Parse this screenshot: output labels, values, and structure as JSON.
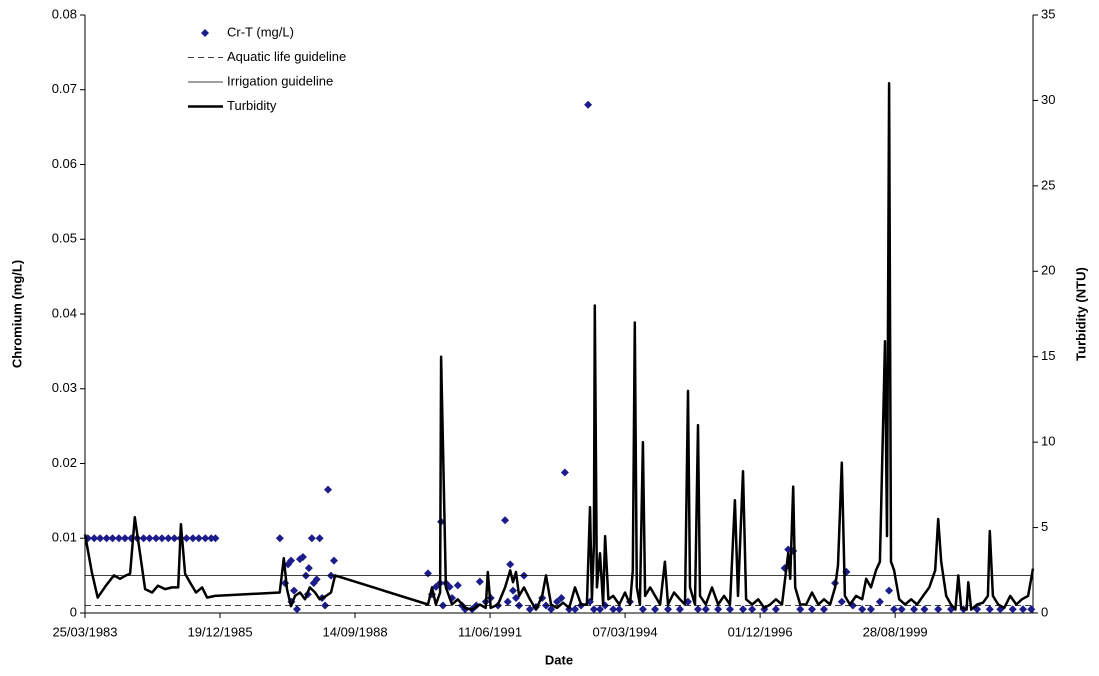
{
  "chart_data": {
    "type": "combo",
    "xlabel": "Date",
    "ylabel": "Chromium (mg/L)",
    "y2label": "Turbidity (NTU)",
    "xlim": [
      "1983-03-25",
      "2002-06-14"
    ],
    "xticks": [
      {
        "value": "1983-03-25",
        "label": "25/03/1983"
      },
      {
        "value": "1985-12-19",
        "label": "19/12/1985"
      },
      {
        "value": "1988-09-14",
        "label": "14/09/1988"
      },
      {
        "value": "1991-06-11",
        "label": "11/06/1991"
      },
      {
        "value": "1994-03-07",
        "label": "07/03/1994"
      },
      {
        "value": "1996-12-01",
        "label": "01/12/1996"
      },
      {
        "value": "1999-08-28",
        "label": "28/08/1999"
      }
    ],
    "ylim": [
      0,
      0.08
    ],
    "yticks": [
      0,
      0.01,
      0.02,
      0.03,
      0.04,
      0.05,
      0.06,
      0.07,
      0.08
    ],
    "y2lim": [
      0,
      35
    ],
    "y2ticks": [
      0,
      5,
      10,
      15,
      20,
      25,
      30,
      35
    ],
    "grid": false,
    "legend": "upper left",
    "series": [
      {
        "name": "Cr-T (mg/L)",
        "type": "scatter",
        "color": "#1c1c8a",
        "x": [
          "1983-04-15",
          "1983-06-01",
          "1983-07-15",
          "1983-09-01",
          "1983-10-15",
          "1983-12-01",
          "1984-01-15",
          "1984-03-01",
          "1984-04-15",
          "1984-06-01",
          "1984-07-15",
          "1984-09-01",
          "1984-10-15",
          "1984-12-01",
          "1985-01-15",
          "1985-03-01",
          "1985-04-15",
          "1985-06-01",
          "1985-07-15",
          "1985-09-01",
          "1985-10-15",
          "1985-11-15",
          "1987-03-07",
          "1987-04-15",
          "1987-05-07",
          "1987-05-29",
          "1987-06-01",
          "1987-06-20",
          "1987-07-12",
          "1987-08-03",
          "1987-08-25",
          "1987-09-16",
          "1987-09-30",
          "1987-10-08",
          "1987-10-30",
          "1987-11-13",
          "1987-12-05",
          "1987-12-27",
          "1988-01-14",
          "1988-02-05",
          "1988-02-27",
          "1988-03-20",
          "1988-04-11",
          "1990-03-08",
          "1990-04-07",
          "1990-05-06",
          "1990-06-06",
          "1990-06-13",
          "1990-06-27",
          "1990-07-19",
          "1990-08-15",
          "1990-09-02",
          "1990-10-15",
          "1990-11-15",
          "1990-12-08",
          "1991-01-29",
          "1991-03-01",
          "1991-03-27",
          "1991-05-10",
          "1991-06-16",
          "1991-08-09",
          "1991-09-30",
          "1991-10-20",
          "1991-11-07",
          "1991-11-28",
          "1991-12-20",
          "1992-01-12",
          "1992-02-17",
          "1992-04-01",
          "1992-05-16",
          "1992-07-01",
          "1992-07-29",
          "1992-09-05",
          "1992-10-19",
          "1992-11-20",
          "1992-12-16",
          "1993-01-17",
          "1993-03-01",
          "1993-04-15",
          "1993-06-06",
          "1993-06-20",
          "1993-07-19",
          "1993-09-02",
          "1993-10-10",
          "1993-12-09",
          "1994-01-23",
          "1994-04-12",
          "1994-07-17",
          "1994-10-15",
          "1995-01-19",
          "1995-04-17",
          "1995-06-16",
          "1995-08-29",
          "1995-10-26",
          "1996-01-25",
          "1996-04-22",
          "1996-07-27",
          "1996-10-03",
          "1997-01-01",
          "1997-03-28",
          "1997-06-01",
          "1997-06-27",
          "1997-08-03",
          "1997-09-24",
          "1997-12-20",
          "1998-03-19",
          "1998-06-09",
          "1998-07-29",
          "1998-09-01",
          "1998-10-19",
          "1998-12-27",
          "1999-03-02",
          "1999-05-07",
          "1999-07-14",
          "1999-08-20",
          "1999-10-15",
          "2000-01-15",
          "2000-04-01",
          "2000-07-12",
          "2000-10-15",
          "2001-01-15",
          "2001-04-26",
          "2001-07-29",
          "2001-10-15",
          "2002-01-15",
          "2002-04-01",
          "2002-06-01"
        ],
        "values": [
          0.01,
          0.01,
          0.01,
          0.01,
          0.01,
          0.01,
          0.01,
          0.01,
          0.01,
          0.01,
          0.01,
          0.01,
          0.01,
          0.01,
          0.01,
          0.01,
          0.01,
          0.01,
          0.01,
          0.01,
          0.01,
          0.01,
          0.01,
          0.004,
          0.0065,
          0.007,
          0.0015,
          0.003,
          0.0005,
          0.0072,
          0.0075,
          0.005,
          0.0025,
          0.006,
          0.01,
          0.004,
          0.0045,
          0.01,
          0.002,
          0.001,
          0.0165,
          0.005,
          0.007,
          0.0053,
          0.0025,
          0.0035,
          0.004,
          0.0122,
          0.001,
          0.004,
          0.0035,
          0.002,
          0.0037,
          0.001,
          0.0005,
          0.0005,
          0.001,
          0.0042,
          0.0015,
          0.002,
          0.001,
          0.0124,
          0.0015,
          0.0065,
          0.003,
          0.002,
          0.001,
          0.005,
          0.0005,
          0.0008,
          0.002,
          0.001,
          0.0005,
          0.0015,
          0.002,
          0.0188,
          0.0005,
          0.0005,
          0.001,
          0.068,
          0.0015,
          0.0005,
          0.0005,
          0.001,
          0.0005,
          0.0005,
          0.0015,
          0.0005,
          0.0005,
          0.0005,
          0.0005,
          0.0015,
          0.0005,
          0.0005,
          0.0005,
          0.0005,
          0.0005,
          0.0005,
          0.0005,
          0.0005,
          0.006,
          0.0085,
          0.0083,
          0.0005,
          0.0005,
          0.0005,
          0.004,
          0.0015,
          0.0055,
          0.001,
          0.0005,
          0.0005,
          0.0015,
          0.003,
          0.0005,
          0.0005,
          0.0005,
          0.0005,
          0.0005,
          0.0005,
          0.0005,
          0.0005,
          0.0005,
          0.0005,
          0.0005,
          0.0005,
          0.0005
        ]
      },
      {
        "name": "Aquatic life guideline",
        "type": "hline",
        "style": "dashed",
        "color": "#000000",
        "value": 0.001
      },
      {
        "name": "Irrigation guideline",
        "type": "hline",
        "style": "thin",
        "color": "#000000",
        "value": 0.005
      },
      {
        "name": "Turbidity",
        "type": "line",
        "axis": "y2",
        "color": "#000000",
        "x": [
          "1983-03-25",
          "1983-05-14",
          "1983-06-27",
          "1983-08-27",
          "1983-10-25",
          "1983-12-09",
          "1984-01-23",
          "1984-02-22",
          "1984-03-28",
          "1984-05-05",
          "1984-06-12",
          "1984-08-03",
          "1984-09-16",
          "1984-11-07",
          "1984-12-28",
          "1985-02-12",
          "1985-03-04",
          "1985-04-04",
          "1985-05-10",
          "1985-06-24",
          "1985-08-08",
          "1985-09-14",
          "1985-11-12",
          "1987-03-06",
          "1987-04-05",
          "1987-04-29",
          "1987-05-29",
          "1987-06-27",
          "1987-08-03",
          "1987-09-09",
          "1987-10-15",
          "1987-11-23",
          "1987-12-27",
          "1988-02-13",
          "1988-03-20",
          "1988-04-19",
          "1990-03-08",
          "1990-04-07",
          "1990-05-06",
          "1990-06-06",
          "1990-06-13",
          "1990-06-27",
          "1990-07-19",
          "1990-09-02",
          "1990-10-15",
          "1990-12-08",
          "1991-01-29",
          "1991-03-27",
          "1991-05-10",
          "1991-05-25",
          "1991-06-16",
          "1991-08-09",
          "1991-09-30",
          "1991-11-07",
          "1991-11-28",
          "1991-12-20",
          "1992-01-12",
          "1992-02-17",
          "1992-04-01",
          "1992-05-16",
          "1992-07-01",
          "1992-07-29",
          "1992-09-05",
          "1992-10-19",
          "1992-12-02",
          "1993-01-17",
          "1993-03-01",
          "1993-04-15",
          "1993-05-28",
          "1993-06-20",
          "1993-07-04",
          "1993-07-19",
          "1993-07-26",
          "1993-08-10",
          "1993-09-02",
          "1993-09-25",
          "1993-10-10",
          "1993-11-03",
          "1993-12-09",
          "1994-01-23",
          "1994-03-06",
          "1994-04-12",
          "1994-05-03",
          "1994-05-18",
          "1994-06-02",
          "1994-06-25",
          "1994-07-17",
          "1994-08-02",
          "1994-09-09",
          "1994-10-15",
          "1994-11-21",
          "1994-12-27",
          "1995-01-19",
          "1995-03-04",
          "1995-04-17",
          "1995-05-25",
          "1995-06-16",
          "1995-07-01",
          "1995-08-07",
          "1995-08-29",
          "1995-09-13",
          "1995-10-26",
          "1995-12-11",
          "1996-01-25",
          "1996-03-09",
          "1996-04-22",
          "1996-05-28",
          "1996-06-20",
          "1996-07-27",
          "1996-08-19",
          "1996-10-03",
          "1996-11-17",
          "1997-01-01",
          "1997-02-14",
          "1997-03-28",
          "1997-05-12",
          "1997-06-27",
          "1997-07-12",
          "1997-08-03",
          "1997-08-18",
          "1997-09-24",
          "1997-11-07",
          "1997-12-20",
          "1998-02-05",
          "1998-03-19",
          "1998-05-03",
          "1998-06-09",
          "1998-07-01",
          "1998-07-29",
          "1998-08-21",
          "1998-09-27",
          "1998-11-12",
          "1998-12-27",
          "1999-01-26",
          "1999-03-02",
          "1999-04-08",
          "1999-05-07",
          "1999-06-14",
          "1999-06-29",
          "1999-07-14",
          "1999-07-28",
          "1999-08-20",
          "1999-09-27",
          "1999-11-10",
          "1999-12-24",
          "2000-02-07",
          "2000-03-22",
          "2000-05-07",
          "2000-06-20",
          "2000-07-12",
          "2000-08-03",
          "2000-09-09",
          "2000-10-15",
          "2000-11-16",
          "2000-12-08",
          "2000-12-29",
          "2001-02-07",
          "2001-02-20",
          "2001-03-13",
          "2001-04-26",
          "2001-06-09",
          "2001-07-15",
          "2001-07-29",
          "2001-08-21",
          "2001-09-29",
          "2001-11-13",
          "2001-12-27",
          "2002-02-10",
          "2002-03-24",
          "2002-05-09",
          "2002-06-14"
        ],
        "values": [
          4.6,
          2.4,
          0.9,
          1.6,
          2.2,
          2.0,
          2.2,
          2.3,
          5.6,
          3.5,
          1.4,
          1.2,
          1.6,
          1.4,
          1.5,
          1.5,
          5.2,
          2.3,
          1.8,
          1.2,
          1.5,
          0.9,
          1.0,
          1.2,
          3.2,
          1.4,
          0.4,
          1.0,
          1.2,
          0.8,
          1.5,
          1.2,
          0.8,
          1.0,
          1.2,
          2.2,
          0.5,
          1.5,
          0.5,
          1.2,
          15.0,
          10.0,
          1.5,
          0.5,
          0.8,
          0.3,
          0.2,
          0.5,
          0.3,
          2.4,
          0.3,
          0.5,
          1.5,
          2.5,
          1.8,
          2.4,
          1.0,
          1.5,
          0.8,
          0.2,
          1.0,
          2.2,
          0.5,
          0.3,
          0.6,
          0.3,
          1.5,
          0.5,
          0.5,
          6.2,
          0.8,
          4.0,
          18.0,
          1.5,
          3.5,
          0.5,
          4.5,
          0.8,
          1.0,
          0.5,
          1.2,
          0.5,
          2.5,
          17.0,
          1.5,
          0.5,
          10.0,
          1.0,
          1.5,
          1.0,
          0.5,
          3.0,
          0.5,
          1.2,
          0.8,
          0.5,
          13.0,
          1.5,
          0.5,
          11.0,
          1.0,
          0.5,
          1.5,
          0.5,
          1.0,
          0.5,
          6.6,
          1.0,
          8.3,
          0.8,
          0.5,
          0.8,
          0.3,
          0.5,
          0.8,
          0.5,
          3.5,
          2.0,
          7.4,
          1.5,
          0.5,
          0.5,
          1.2,
          0.5,
          0.8,
          0.5,
          1.5,
          2.8,
          8.8,
          1.0,
          0.5,
          1.0,
          0.8,
          2.0,
          1.5,
          2.5,
          3.0,
          15.9,
          4.5,
          31.0,
          3.0,
          2.5,
          0.8,
          0.5,
          0.8,
          0.5,
          1.0,
          1.5,
          2.5,
          5.5,
          3.0,
          1.0,
          0.5,
          0.2,
          2.2,
          0.3,
          0.2,
          1.8,
          0.2,
          0.5,
          0.6,
          1.0,
          4.8,
          1.0,
          0.5,
          0.3,
          1.0,
          0.5,
          0.8,
          1.0,
          2.6
        ]
      }
    ]
  }
}
